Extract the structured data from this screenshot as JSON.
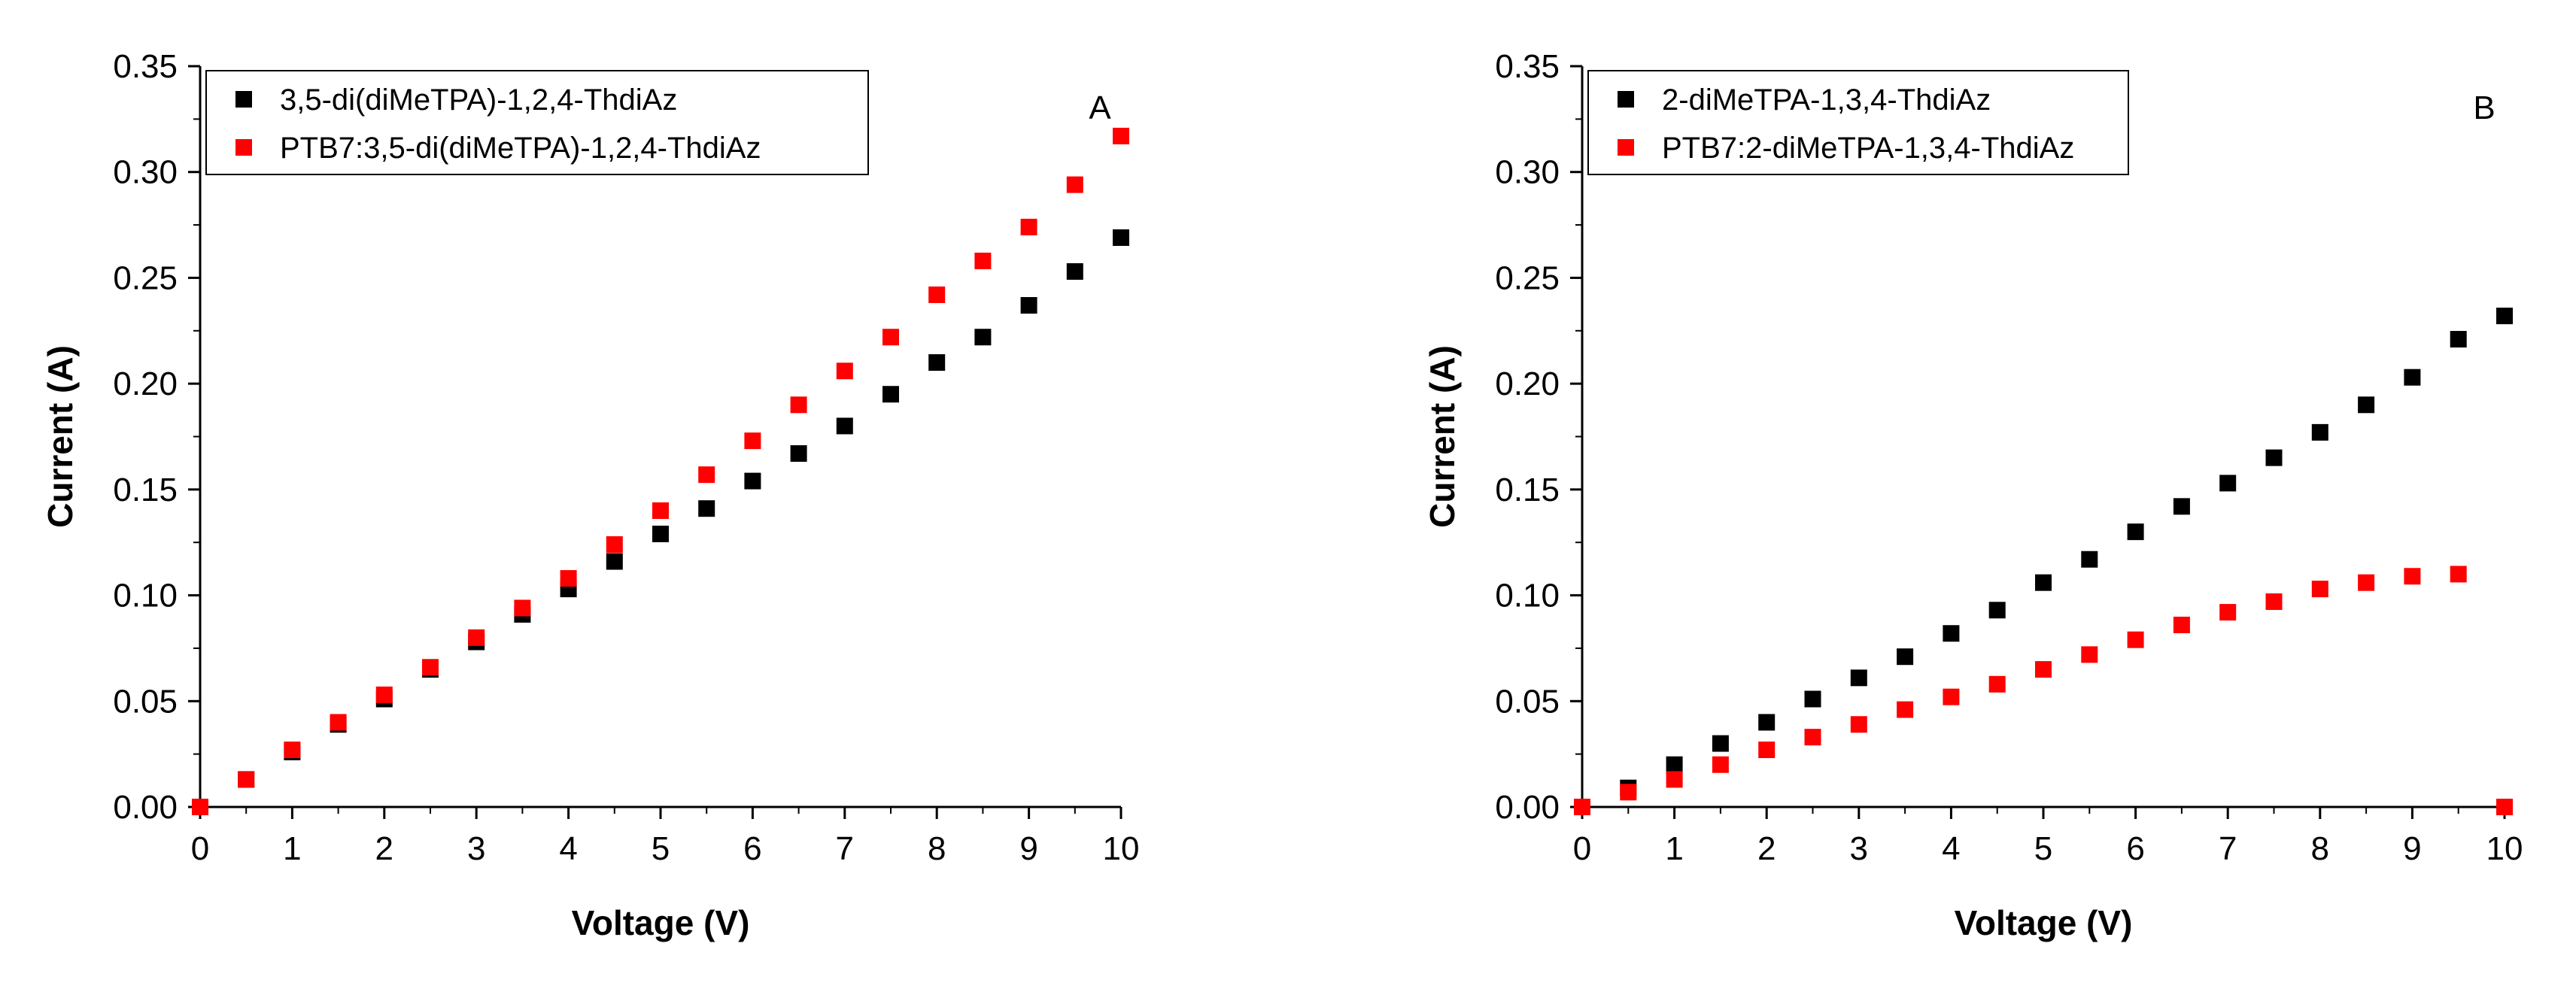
{
  "chart_data": [
    {
      "type": "scatter",
      "panel_label": "A",
      "xlabel": "Voltage (V)",
      "ylabel": "Current (A)",
      "xlim": [
        0,
        10
      ],
      "ylim": [
        0,
        0.35
      ],
      "xticks": [
        "0",
        "1",
        "2",
        "3",
        "4",
        "5",
        "6",
        "7",
        "8",
        "9",
        "10"
      ],
      "yticks": [
        "0.00",
        "0.05",
        "0.10",
        "0.15",
        "0.20",
        "0.25",
        "0.30",
        "0.35"
      ],
      "legend_position": "top-left",
      "series": [
        {
          "name": "3,5-di(diMeTPA)-1,2,4-ThdiAz",
          "color": "#000000",
          "x": [
            0,
            0.5,
            1,
            1.5,
            2,
            2.5,
            3,
            3.5,
            4,
            4.5,
            5,
            5.5,
            6,
            6.5,
            7,
            7.5,
            8,
            8.5,
            9,
            9.5,
            10
          ],
          "y": [
            0,
            0.013,
            0.026,
            0.039,
            0.051,
            0.065,
            0.078,
            0.091,
            0.103,
            0.116,
            0.129,
            0.141,
            0.154,
            0.167,
            0.18,
            0.195,
            0.21,
            0.222,
            0.237,
            0.253,
            0.269
          ]
        },
        {
          "name": "PTB7:3,5-di(diMeTPA)-1,2,4-ThdiAz",
          "color": "#ff0000",
          "x": [
            0,
            0.5,
            1,
            1.5,
            2,
            2.5,
            3,
            3.5,
            4,
            4.5,
            5,
            5.5,
            6,
            6.5,
            7,
            7.5,
            8,
            8.5,
            9,
            9.5,
            10
          ],
          "y": [
            0,
            0.013,
            0.027,
            0.04,
            0.053,
            0.066,
            0.08,
            0.094,
            0.108,
            0.124,
            0.14,
            0.157,
            0.173,
            0.19,
            0.206,
            0.222,
            0.242,
            0.258,
            0.274,
            0.294,
            0.317
          ]
        }
      ]
    },
    {
      "type": "scatter",
      "panel_label": "B",
      "xlabel": "Voltage (V)",
      "ylabel": "Current (A)",
      "xlim": [
        0,
        10
      ],
      "ylim": [
        0,
        0.35
      ],
      "xticks": [
        "0",
        "1",
        "2",
        "3",
        "4",
        "5",
        "6",
        "7",
        "8",
        "9",
        "10"
      ],
      "yticks": [
        "0.00",
        "0.05",
        "0.10",
        "0.15",
        "0.20",
        "0.25",
        "0.30",
        "0.35"
      ],
      "legend_position": "top-left",
      "series": [
        {
          "name": "2-diMeTPA-1,3,4-ThdiAz",
          "color": "#000000",
          "x": [
            0,
            0.5,
            1,
            1.5,
            2,
            2.5,
            3,
            3.5,
            4,
            4.5,
            5,
            5.5,
            6,
            6.5,
            7,
            7.5,
            8,
            8.5,
            9,
            9.5,
            10
          ],
          "y": [
            0,
            0.009,
            0.02,
            0.03,
            0.04,
            0.051,
            0.061,
            0.071,
            0.082,
            0.093,
            0.106,
            0.117,
            0.13,
            0.142,
            0.153,
            0.165,
            0.177,
            0.19,
            0.203,
            0.221,
            0.232
          ]
        },
        {
          "name": "PTB7:2-diMeTPA-1,3,4-ThdiAz",
          "color": "#ff0000",
          "x": [
            0,
            0.5,
            1,
            1.5,
            2,
            2.5,
            3,
            3.5,
            4,
            4.5,
            5,
            5.5,
            6,
            6.5,
            7,
            7.5,
            8,
            8.5,
            9,
            9.5,
            10
          ],
          "y": [
            0,
            0.007,
            0.013,
            0.02,
            0.027,
            0.033,
            0.039,
            0.046,
            0.052,
            0.058,
            0.065,
            0.072,
            0.079,
            0.086,
            0.092,
            0.097,
            0.103,
            0.106,
            0.109,
            0.11,
            0
          ]
        }
      ]
    }
  ]
}
